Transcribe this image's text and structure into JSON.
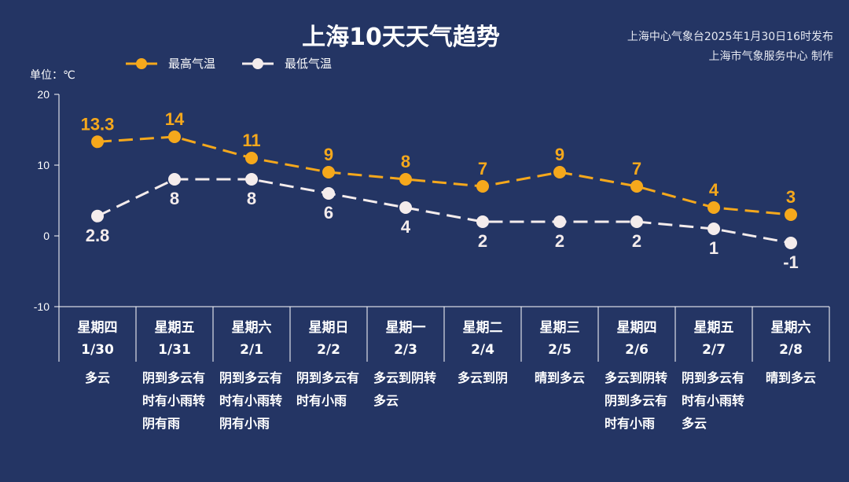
{
  "chart_data": {
    "type": "line",
    "title": "上海10天天气趋势",
    "source_lines": [
      "上海中心气象台2025年1月30日16时发布",
      "上海市气象服务中心 制作"
    ],
    "ylabel": "单位：℃",
    "ylim": [
      -10,
      20
    ],
    "yticks": [
      20,
      10,
      0,
      -10
    ],
    "legend_position": "top-left",
    "categories": [
      {
        "dow": "星期四",
        "date": "1/30",
        "weather": "多云"
      },
      {
        "dow": "星期五",
        "date": "1/31",
        "weather": "阴到多云有时有小雨转阴有雨"
      },
      {
        "dow": "星期六",
        "date": "2/1",
        "weather": "阴到多云有时有小雨转阴有小雨"
      },
      {
        "dow": "星期日",
        "date": "2/2",
        "weather": "阴到多云有时有小雨"
      },
      {
        "dow": "星期一",
        "date": "2/3",
        "weather": "多云到阴转多云"
      },
      {
        "dow": "星期二",
        "date": "2/4",
        "weather": "多云到阴"
      },
      {
        "dow": "星期三",
        "date": "2/5",
        "weather": "晴到多云"
      },
      {
        "dow": "星期四",
        "date": "2/6",
        "weather": "多云到阴转阴到多云有时有小雨"
      },
      {
        "dow": "星期五",
        "date": "2/7",
        "weather": "阴到多云有时有小雨转多云"
      },
      {
        "dow": "星期六",
        "date": "2/8",
        "weather": "晴到多云"
      }
    ],
    "series": [
      {
        "name": "最高气温",
        "color": "#f5a81c",
        "values": [
          13.3,
          14,
          11,
          9,
          8,
          7,
          9,
          7,
          4,
          3
        ]
      },
      {
        "name": "最低气温",
        "color": "#f4ecec",
        "values": [
          2.8,
          8,
          8,
          6,
          4,
          2,
          2,
          2,
          1,
          -1
        ]
      }
    ]
  }
}
